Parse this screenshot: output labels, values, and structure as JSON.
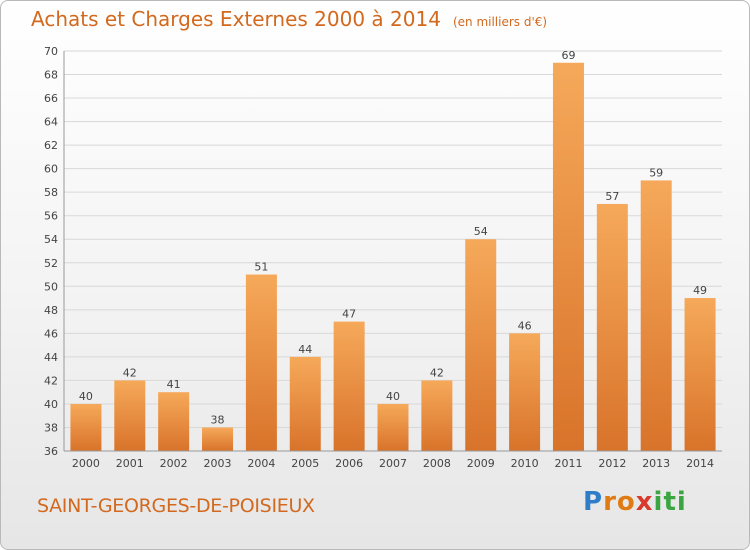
{
  "title": "Achats et Charges Externes 2000 à 2014",
  "subtitle": "(en milliers d'€)",
  "town": "SAINT-GEORGES-DE-POISIEUX",
  "logo": {
    "letters": [
      "P",
      "r",
      "o",
      "x",
      "i",
      "t",
      "i"
    ],
    "colors": [
      "#2f7dc8",
      "#e07b14",
      "#e07b14",
      "#d93a2b",
      "#3aa541",
      "#3aa541",
      "#3aa541"
    ]
  },
  "colors": {
    "title": "#d2691e",
    "bar_light": "#f6a95a",
    "bar_dark": "#d8732a",
    "grid": "#d8d8d8"
  },
  "chart_data": {
    "type": "bar",
    "categories": [
      "2000",
      "2001",
      "2002",
      "2003",
      "2004",
      "2005",
      "2006",
      "2007",
      "2008",
      "2009",
      "2010",
      "2011",
      "2012",
      "2013",
      "2014"
    ],
    "values": [
      40,
      42,
      41,
      38,
      51,
      44,
      47,
      40,
      42,
      54,
      46,
      69,
      57,
      59,
      49
    ],
    "ylim": [
      36,
      70
    ],
    "yticks": [
      36,
      38,
      40,
      42,
      44,
      46,
      48,
      50,
      52,
      54,
      56,
      58,
      60,
      62,
      64,
      66,
      68,
      70
    ],
    "grid": true,
    "data_labels": true
  }
}
